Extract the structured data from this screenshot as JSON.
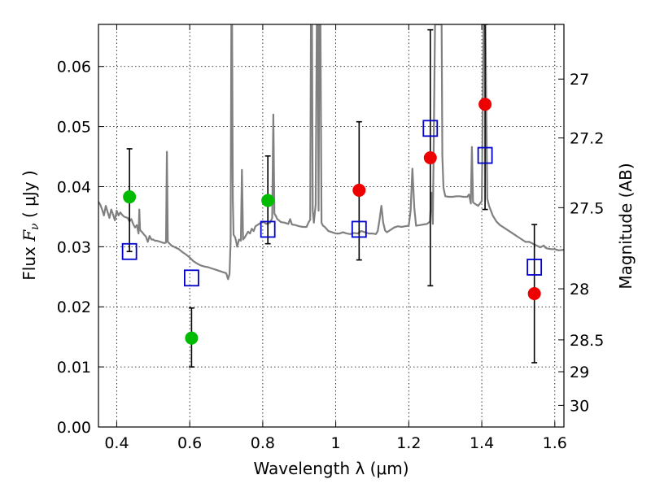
{
  "chart_data": {
    "type": "scatter",
    "title": "",
    "xlabel": "Wavelength  λ (μm)",
    "ylabel_parts": [
      "Flux  ",
      "F",
      "ν",
      "  ( μJy )"
    ],
    "ylabel_right": "Magnitude (AB)",
    "xlim": [
      0.35,
      1.625
    ],
    "ylim": [
      0.0,
      0.067
    ],
    "grid": true,
    "x_ticks": [
      0.4,
      0.6,
      0.8,
      1.0,
      1.2,
      1.4,
      1.6
    ],
    "x_tick_labels": [
      "0.4",
      "0.6",
      "0.8",
      "1",
      "1.2",
      "1.4",
      "1.6"
    ],
    "y_ticks": [
      0.0,
      0.01,
      0.02,
      0.03,
      0.04,
      0.05,
      0.06
    ],
    "y_tick_labels": [
      "0.00",
      "0.01",
      "0.02",
      "0.03",
      "0.04",
      "0.05",
      "0.06"
    ],
    "right_ticks": [
      {
        "label": "27",
        "flux": 0.0579
      },
      {
        "label": "27.2",
        "flux": 0.0481
      },
      {
        "label": "27.5",
        "flux": 0.0365
      },
      {
        "label": "28",
        "flux": 0.023
      },
      {
        "label": "28.5",
        "flux": 0.0145
      },
      {
        "label": "29",
        "flux": 0.0092
      },
      {
        "label": "30",
        "flux": 0.0036
      }
    ],
    "series": [
      {
        "marker": "circle",
        "color": "#00bb00",
        "points": [
          {
            "x": 0.435,
            "y": 0.0383
          },
          {
            "x": 0.605,
            "y": 0.0148
          },
          {
            "x": 0.814,
            "y": 0.0377
          }
        ]
      },
      {
        "marker": "circle",
        "color": "#ee0000",
        "points": [
          {
            "x": 1.064,
            "y": 0.0394
          },
          {
            "x": 1.259,
            "y": 0.0448
          },
          {
            "x": 1.409,
            "y": 0.0537
          },
          {
            "x": 1.544,
            "y": 0.0222
          }
        ]
      },
      {
        "marker": "square-open",
        "color": "#0000cc",
        "points": [
          {
            "x": 0.435,
            "y": 0.0292
          },
          {
            "x": 0.605,
            "y": 0.0248
          },
          {
            "x": 0.814,
            "y": 0.0329
          },
          {
            "x": 1.064,
            "y": 0.0329
          },
          {
            "x": 1.259,
            "y": 0.0497
          },
          {
            "x": 1.409,
            "y": 0.0452
          },
          {
            "x": 1.544,
            "y": 0.0266
          }
        ]
      }
    ],
    "error_bars": [
      {
        "x": 0.435,
        "low": 0.0292,
        "high": 0.0463
      },
      {
        "x": 0.605,
        "low": 0.01,
        "high": 0.0198
      },
      {
        "x": 0.814,
        "low": 0.0305,
        "high": 0.0451
      },
      {
        "x": 1.064,
        "low": 0.0278,
        "high": 0.0508
      },
      {
        "x": 1.259,
        "low": 0.0235,
        "high": 0.0661
      },
      {
        "x": 1.409,
        "low": 0.0362,
        "high": 0.067
      },
      {
        "x": 1.544,
        "low": 0.0107,
        "high": 0.0337
      }
    ],
    "spectrum": {
      "color": "#808080",
      "points": [
        [
          0.35,
          0.0375
        ],
        [
          0.355,
          0.037
        ],
        [
          0.36,
          0.0362
        ],
        [
          0.365,
          0.0352
        ],
        [
          0.37,
          0.0368
        ],
        [
          0.375,
          0.0358
        ],
        [
          0.38,
          0.0348
        ],
        [
          0.385,
          0.0362
        ],
        [
          0.39,
          0.0354
        ],
        [
          0.395,
          0.0344
        ],
        [
          0.4,
          0.036
        ],
        [
          0.405,
          0.0352
        ],
        [
          0.41,
          0.0357
        ],
        [
          0.415,
          0.0353
        ],
        [
          0.42,
          0.035
        ],
        [
          0.425,
          0.0349
        ],
        [
          0.43,
          0.0348
        ],
        [
          0.435,
          0.0342
        ],
        [
          0.44,
          0.0346
        ],
        [
          0.445,
          0.0338
        ],
        [
          0.45,
          0.0332
        ],
        [
          0.455,
          0.0336
        ],
        [
          0.46,
          0.0322
        ],
        [
          0.462,
          0.0362
        ],
        [
          0.464,
          0.0328
        ],
        [
          0.47,
          0.0324
        ],
        [
          0.475,
          0.032
        ],
        [
          0.48,
          0.0317
        ],
        [
          0.485,
          0.0308
        ],
        [
          0.49,
          0.0318
        ],
        [
          0.495,
          0.0312
        ],
        [
          0.5,
          0.0312
        ],
        [
          0.505,
          0.031
        ],
        [
          0.51,
          0.031
        ],
        [
          0.515,
          0.0309
        ],
        [
          0.52,
          0.0308
        ],
        [
          0.525,
          0.0307
        ],
        [
          0.53,
          0.0306
        ],
        [
          0.535,
          0.0307
        ],
        [
          0.5375,
          0.0458
        ],
        [
          0.54,
          0.0308
        ],
        [
          0.545,
          0.0305
        ],
        [
          0.55,
          0.0302
        ],
        [
          0.56,
          0.0299
        ],
        [
          0.57,
          0.0296
        ],
        [
          0.58,
          0.0291
        ],
        [
          0.59,
          0.0287
        ],
        [
          0.6,
          0.0282
        ],
        [
          0.61,
          0.0276
        ],
        [
          0.62,
          0.0272
        ],
        [
          0.63,
          0.0269
        ],
        [
          0.64,
          0.0267
        ],
        [
          0.65,
          0.0266
        ],
        [
          0.66,
          0.0264
        ],
        [
          0.67,
          0.0262
        ],
        [
          0.68,
          0.026
        ],
        [
          0.69,
          0.0258
        ],
        [
          0.7,
          0.0256
        ],
        [
          0.705,
          0.0246
        ],
        [
          0.709,
          0.0255
        ],
        [
          0.712,
          0.031
        ],
        [
          0.714,
          0.067
        ],
        [
          0.716,
          0.067
        ],
        [
          0.718,
          0.038
        ],
        [
          0.72,
          0.032
        ],
        [
          0.725,
          0.0315
        ],
        [
          0.73,
          0.03
        ],
        [
          0.735,
          0.0312
        ],
        [
          0.74,
          0.031
        ],
        [
          0.743,
          0.0428
        ],
        [
          0.746,
          0.0312
        ],
        [
          0.75,
          0.0315
        ],
        [
          0.755,
          0.032
        ],
        [
          0.76,
          0.0325
        ],
        [
          0.765,
          0.0322
        ],
        [
          0.77,
          0.033
        ],
        [
          0.775,
          0.0326
        ],
        [
          0.78,
          0.0334
        ],
        [
          0.79,
          0.0338
        ],
        [
          0.8,
          0.0342
        ],
        [
          0.81,
          0.0338
        ],
        [
          0.82,
          0.034
        ],
        [
          0.826,
          0.0348
        ],
        [
          0.829,
          0.052
        ],
        [
          0.832,
          0.0355
        ],
        [
          0.835,
          0.0352
        ],
        [
          0.84,
          0.0346
        ],
        [
          0.85,
          0.0341
        ],
        [
          0.86,
          0.034
        ],
        [
          0.87,
          0.0338
        ],
        [
          0.875,
          0.0346
        ],
        [
          0.88,
          0.0337
        ],
        [
          0.89,
          0.0336
        ],
        [
          0.9,
          0.0334
        ],
        [
          0.91,
          0.0333
        ],
        [
          0.92,
          0.0333
        ],
        [
          0.925,
          0.034
        ],
        [
          0.93,
          0.0345
        ],
        [
          0.932,
          0.067
        ],
        [
          0.935,
          0.067
        ],
        [
          0.937,
          0.036
        ],
        [
          0.94,
          0.034
        ],
        [
          0.945,
          0.037
        ],
        [
          0.948,
          0.067
        ],
        [
          0.951,
          0.067
        ],
        [
          0.953,
          0.036
        ],
        [
          0.955,
          0.067
        ],
        [
          0.958,
          0.067
        ],
        [
          0.961,
          0.034
        ],
        [
          0.965,
          0.0335
        ],
        [
          0.97,
          0.0333
        ],
        [
          0.98,
          0.0326
        ],
        [
          0.99,
          0.0324
        ],
        [
          1.0,
          0.0322
        ],
        [
          1.01,
          0.0322
        ],
        [
          1.02,
          0.0324
        ],
        [
          1.03,
          0.0322
        ],
        [
          1.04,
          0.0321
        ],
        [
          1.05,
          0.0323
        ],
        [
          1.06,
          0.0322
        ],
        [
          1.07,
          0.0326
        ],
        [
          1.08,
          0.0324
        ],
        [
          1.09,
          0.0322
        ],
        [
          1.1,
          0.0322
        ],
        [
          1.11,
          0.0321
        ],
        [
          1.115,
          0.0326
        ],
        [
          1.12,
          0.0345
        ],
        [
          1.125,
          0.0368
        ],
        [
          1.13,
          0.034
        ],
        [
          1.135,
          0.0327
        ],
        [
          1.14,
          0.0324
        ],
        [
          1.15,
          0.0328
        ],
        [
          1.16,
          0.0332
        ],
        [
          1.17,
          0.0334
        ],
        [
          1.18,
          0.0333
        ],
        [
          1.19,
          0.0334
        ],
        [
          1.2,
          0.0335
        ],
        [
          1.205,
          0.036
        ],
        [
          1.21,
          0.043
        ],
        [
          1.215,
          0.0365
        ],
        [
          1.22,
          0.0335
        ],
        [
          1.23,
          0.0336
        ],
        [
          1.24,
          0.0337
        ],
        [
          1.25,
          0.0338
        ],
        [
          1.258,
          0.0342
        ],
        [
          1.262,
          0.039
        ],
        [
          1.266,
          0.0338
        ],
        [
          1.272,
          0.067
        ],
        [
          1.28,
          0.067
        ],
        [
          1.29,
          0.067
        ],
        [
          1.292,
          0.045
        ],
        [
          1.295,
          0.0398
        ],
        [
          1.3,
          0.0384
        ],
        [
          1.31,
          0.0383
        ],
        [
          1.32,
          0.0383
        ],
        [
          1.33,
          0.0384
        ],
        [
          1.34,
          0.0384
        ],
        [
          1.35,
          0.0383
        ],
        [
          1.36,
          0.0383
        ],
        [
          1.365,
          0.0387
        ],
        [
          1.37,
          0.0372
        ],
        [
          1.373,
          0.0466
        ],
        [
          1.376,
          0.0374
        ],
        [
          1.38,
          0.0372
        ],
        [
          1.39,
          0.0368
        ],
        [
          1.4,
          0.0376
        ],
        [
          1.405,
          0.067
        ],
        [
          1.41,
          0.067
        ],
        [
          1.415,
          0.038
        ],
        [
          1.42,
          0.0368
        ],
        [
          1.43,
          0.0352
        ],
        [
          1.44,
          0.0342
        ],
        [
          1.45,
          0.0336
        ],
        [
          1.46,
          0.0332
        ],
        [
          1.47,
          0.0328
        ],
        [
          1.48,
          0.0324
        ],
        [
          1.49,
          0.032
        ],
        [
          1.5,
          0.0316
        ],
        [
          1.51,
          0.0312
        ],
        [
          1.52,
          0.0308
        ],
        [
          1.53,
          0.0308
        ],
        [
          1.54,
          0.0305
        ],
        [
          1.55,
          0.0302
        ],
        [
          1.56,
          0.0299
        ],
        [
          1.57,
          0.0302
        ],
        [
          1.575,
          0.0298
        ],
        [
          1.58,
          0.0297
        ],
        [
          1.59,
          0.0296
        ],
        [
          1.6,
          0.0296
        ],
        [
          1.61,
          0.0294
        ],
        [
          1.625,
          0.0295
        ]
      ]
    }
  }
}
